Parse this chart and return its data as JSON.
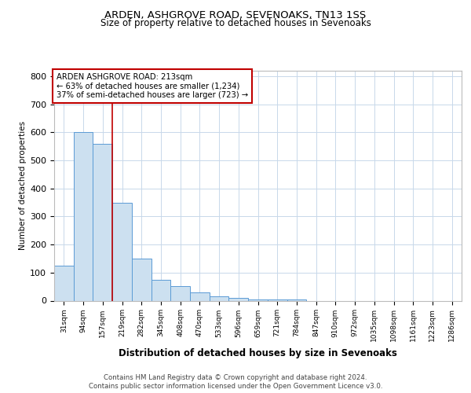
{
  "title1": "ARDEN, ASHGROVE ROAD, SEVENOAKS, TN13 1SS",
  "title2": "Size of property relative to detached houses in Sevenoaks",
  "xlabel": "Distribution of detached houses by size in Sevenoaks",
  "ylabel": "Number of detached properties",
  "categories": [
    "31sqm",
    "94sqm",
    "157sqm",
    "219sqm",
    "282sqm",
    "345sqm",
    "408sqm",
    "470sqm",
    "533sqm",
    "596sqm",
    "659sqm",
    "721sqm",
    "784sqm",
    "847sqm",
    "910sqm",
    "972sqm",
    "1035sqm",
    "1098sqm",
    "1161sqm",
    "1223sqm",
    "1286sqm"
  ],
  "values": [
    125,
    600,
    560,
    350,
    150,
    75,
    53,
    30,
    15,
    10,
    5,
    5,
    5,
    0,
    0,
    0,
    0,
    0,
    0,
    0,
    0
  ],
  "bar_color": "#cce0f0",
  "bar_edge_color": "#5b9bd5",
  "vline_x_index": 3,
  "vline_color": "#c00000",
  "annotation_text": "ARDEN ASHGROVE ROAD: 213sqm\n← 63% of detached houses are smaller (1,234)\n37% of semi-detached houses are larger (723) →",
  "annotation_box_color": "#ffffff",
  "annotation_box_edge": "#c00000",
  "footer1": "Contains HM Land Registry data © Crown copyright and database right 2024.",
  "footer2": "Contains public sector information licensed under the Open Government Licence v3.0.",
  "bg_color": "#ffffff",
  "grid_color": "#c8d8ea",
  "ylim": [
    0,
    820
  ],
  "yticks": [
    0,
    100,
    200,
    300,
    400,
    500,
    600,
    700,
    800
  ]
}
